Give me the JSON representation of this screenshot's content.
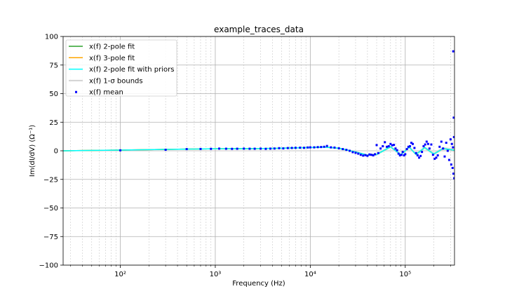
{
  "chart_data": {
    "type": "line",
    "title": "example_traces_data",
    "xlabel": "Frequency (Hz)",
    "ylabel": "Im(dI/dV) (Ω⁻¹)",
    "xscale": "log",
    "xlim": [
      25,
      330000
    ],
    "ylim": [
      -100,
      100
    ],
    "x_ticks": [
      {
        "value": 100,
        "label": "10²"
      },
      {
        "value": 1000,
        "label": "10³"
      },
      {
        "value": 10000,
        "label": "10⁴"
      },
      {
        "value": 100000,
        "label": "10⁵"
      }
    ],
    "y_ticks": [
      -100,
      -75,
      -50,
      -25,
      0,
      25,
      50,
      75,
      100
    ],
    "grid": true,
    "legend_position": "top-left",
    "series": [
      {
        "name": "x(f) 2-pole fit",
        "kind": "line",
        "color": "#2ca02c",
        "x": [
          25,
          100,
          300,
          1000,
          3000,
          10000,
          14000,
          20000,
          30000,
          40000,
          50000,
          70000,
          90000,
          110000,
          130000,
          160000,
          200000,
          250000,
          330000
        ],
        "y": [
          0,
          0.6,
          1.2,
          1.8,
          1.9,
          2.8,
          3.3,
          2.2,
          -1.0,
          -3.8,
          -3.2,
          3.5,
          -3.5,
          3.2,
          -3.2,
          2.8,
          -2.8,
          2.0,
          0.5
        ]
      },
      {
        "name": "x(f) 3-pole fit",
        "kind": "line",
        "color": "#ffa500",
        "x": [
          25,
          100,
          300,
          1000,
          3000,
          10000,
          14000,
          20000,
          30000,
          40000,
          50000,
          70000,
          90000,
          110000,
          130000,
          160000,
          200000,
          250000,
          330000
        ],
        "y": [
          0,
          0.6,
          1.2,
          1.8,
          1.9,
          2.8,
          3.3,
          2.2,
          -1.0,
          -3.8,
          -3.2,
          3.5,
          -3.5,
          3.2,
          -3.2,
          2.8,
          -2.8,
          2.0,
          0.5
        ]
      },
      {
        "name": "x(f) 2-pole fit with priors",
        "kind": "line",
        "color": "#00ffff",
        "x": [
          25,
          100,
          300,
          1000,
          3000,
          10000,
          14000,
          20000,
          30000,
          40000,
          50000,
          70000,
          90000,
          110000,
          130000,
          160000,
          200000,
          250000,
          330000
        ],
        "y": [
          0,
          0.6,
          1.2,
          1.8,
          1.9,
          2.8,
          3.3,
          2.2,
          -1.0,
          -3.8,
          -3.2,
          3.5,
          -3.5,
          3.2,
          -3.2,
          2.8,
          -2.8,
          2.0,
          0.5
        ]
      },
      {
        "name": "x(f) 1-σ bounds",
        "kind": "band",
        "color": "#d3d3d3",
        "x": [
          25,
          100,
          1000,
          10000,
          30000,
          70000,
          130000,
          330000
        ],
        "y": [
          0.5,
          0.5,
          0.5,
          0.6,
          0.8,
          1.0,
          1.2,
          1.5
        ]
      },
      {
        "name": "x(f) mean",
        "kind": "scatter",
        "color": "#0000ff",
        "x": [
          100,
          300,
          500,
          700,
          900,
          1100,
          1300,
          1500,
          1700,
          2000,
          2300,
          2600,
          3000,
          3400,
          3800,
          4200,
          4700,
          5200,
          5800,
          6400,
          7000,
          7800,
          8600,
          9400,
          10000,
          11000,
          12000,
          13000,
          14000,
          15000,
          16500,
          18000,
          20000,
          22000,
          24000,
          26000,
          28000,
          30000,
          32000,
          34000,
          36000,
          38000,
          40000,
          42000,
          44000,
          46000,
          48000,
          50000,
          52000,
          55000,
          58000,
          61000,
          64000,
          67000,
          70000,
          73000,
          76000,
          79000,
          82000,
          85000,
          88000,
          91000,
          94000,
          97000,
          100000,
          104000,
          108000,
          112000,
          116000,
          120000,
          125000,
          130000,
          135000,
          140000,
          145000,
          150000,
          156000,
          162000,
          168000,
          174000,
          180000,
          188000,
          196000,
          204000,
          212000,
          220000,
          230000,
          240000,
          250000,
          260000,
          270000,
          280000,
          290000,
          300000,
          305000,
          310000,
          315000,
          318000,
          320000,
          322000,
          324000,
          326000,
          328000
        ],
        "y": [
          0.4,
          0.9,
          1.5,
          1.6,
          1.7,
          1.9,
          1.8,
          1.7,
          1.8,
          1.9,
          1.8,
          1.8,
          1.9,
          1.7,
          1.9,
          2.0,
          2.3,
          2.1,
          2.4,
          2.5,
          2.6,
          2.7,
          2.6,
          2.9,
          3.0,
          3.0,
          3.2,
          3.3,
          3.5,
          4.2,
          3.0,
          2.8,
          2.2,
          1.5,
          0.8,
          0.0,
          -1.2,
          -1.8,
          -2.5,
          -3.5,
          -4.2,
          -3.8,
          -4.4,
          -3.2,
          -3.5,
          -4.0,
          -3.0,
          5.0,
          -2.0,
          2.0,
          4.0,
          7.5,
          3.5,
          4.0,
          6.0,
          4.8,
          5.2,
          2.0,
          0.5,
          -2.5,
          -4.0,
          -3.5,
          -1.0,
          -4.0,
          -3.0,
          1.5,
          3.5,
          4.0,
          7.0,
          6.0,
          2.5,
          -2.0,
          -4.0,
          -6.0,
          -4.5,
          -1.0,
          4.0,
          5.5,
          8.0,
          6.0,
          2.0,
          5.5,
          -3.5,
          -7.0,
          -6.0,
          -4.0,
          3.5,
          8.0,
          2.0,
          -5.0,
          7.0,
          0.0,
          -8.0,
          10.0,
          -12.0,
          6.0,
          -15.0,
          3.0,
          87.0,
          -20.0,
          29.0,
          12.0,
          -24.0
        ]
      }
    ]
  }
}
